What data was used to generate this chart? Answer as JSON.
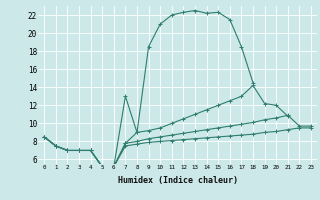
{
  "xlabel": "Humidex (Indice chaleur)",
  "bg_color": "#cce8e8",
  "grid_color": "#ffffff",
  "line_color": "#2e7d6e",
  "xlim": [
    -0.5,
    23.5
  ],
  "ylim": [
    5.5,
    23
  ],
  "yticks": [
    6,
    8,
    10,
    12,
    14,
    16,
    18,
    20,
    22
  ],
  "xticks": [
    0,
    1,
    2,
    3,
    4,
    5,
    6,
    7,
    8,
    9,
    10,
    11,
    12,
    13,
    14,
    15,
    16,
    17,
    18,
    19,
    20,
    21,
    22,
    23
  ],
  "line1_x": [
    0,
    1,
    2,
    3,
    4,
    5,
    6,
    7,
    8,
    9,
    10,
    11,
    12,
    13,
    14,
    15,
    16,
    17,
    18
  ],
  "line1_y": [
    8.5,
    7.5,
    7.0,
    7.0,
    7.0,
    5.2,
    5.2,
    7.8,
    9.0,
    18.5,
    21.0,
    22.0,
    22.3,
    22.5,
    22.2,
    22.3,
    21.5,
    18.5,
    14.5
  ],
  "line2_x": [
    0,
    1,
    2,
    3,
    4,
    5,
    6,
    7,
    8,
    9,
    10,
    11,
    12,
    13,
    14,
    15,
    16,
    17,
    18,
    19,
    20,
    21
  ],
  "line2_y": [
    8.5,
    7.5,
    7.0,
    7.0,
    7.0,
    5.2,
    5.2,
    13.0,
    9.0,
    9.2,
    9.5,
    10.0,
    10.5,
    11.0,
    11.5,
    12.0,
    12.5,
    13.0,
    14.2,
    12.2,
    12.0,
    10.8
  ],
  "line3_x": [
    0,
    1,
    2,
    3,
    4,
    5,
    6,
    7,
    8,
    9,
    10,
    11,
    12,
    13,
    14,
    15,
    16,
    17,
    18,
    19,
    20,
    21,
    22,
    23
  ],
  "line3_y": [
    8.5,
    7.5,
    7.0,
    7.0,
    7.0,
    5.2,
    5.2,
    7.8,
    8.0,
    8.3,
    8.5,
    8.7,
    8.9,
    9.1,
    9.3,
    9.5,
    9.7,
    9.9,
    10.1,
    10.4,
    10.6,
    10.9,
    9.7,
    9.7
  ],
  "line4_x": [
    0,
    1,
    2,
    3,
    4,
    5,
    6,
    7,
    8,
    9,
    10,
    11,
    12,
    13,
    14,
    15,
    16,
    17,
    18,
    19,
    20,
    21,
    22,
    23
  ],
  "line4_y": [
    8.5,
    7.5,
    7.0,
    7.0,
    7.0,
    5.2,
    5.2,
    7.5,
    7.7,
    7.9,
    8.0,
    8.1,
    8.2,
    8.3,
    8.4,
    8.5,
    8.6,
    8.7,
    8.8,
    9.0,
    9.1,
    9.3,
    9.5,
    9.5
  ]
}
